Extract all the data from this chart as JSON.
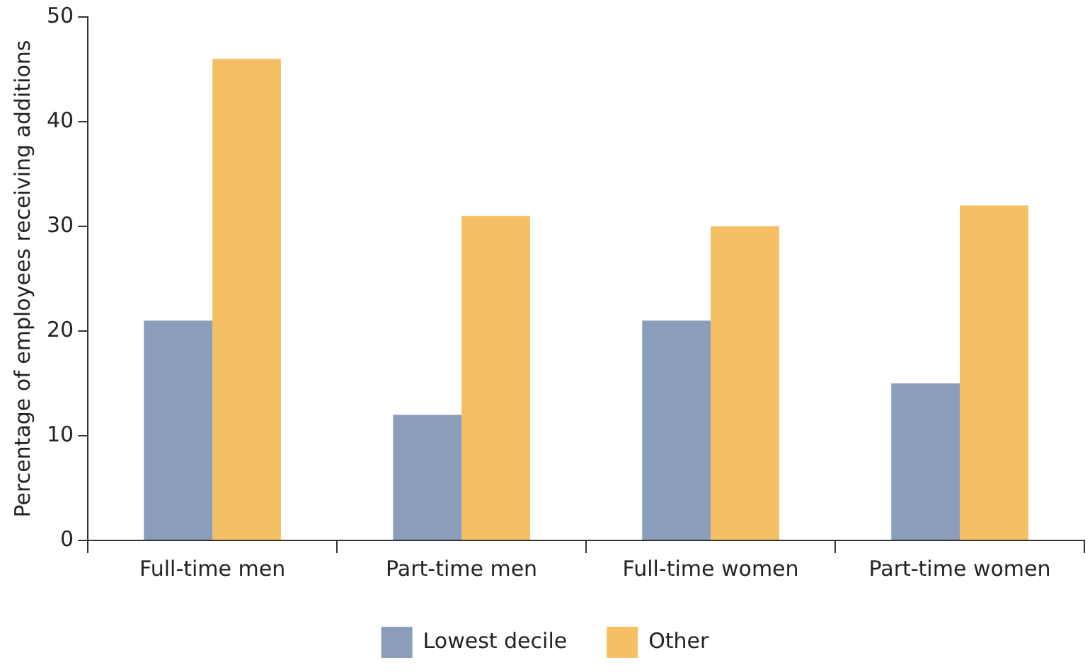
{
  "chart_data": {
    "type": "bar",
    "ylabel": "Percentage of employees receiving additions",
    "categories": [
      "Full-time men",
      "Part-time men",
      "Full-time women",
      "Part-time women"
    ],
    "series": [
      {
        "name": "Lowest decile",
        "color": "#8a9dbb",
        "values": [
          21,
          12,
          21,
          15
        ]
      },
      {
        "name": "Other",
        "color": "#f5bf63",
        "values": [
          46,
          31,
          30,
          32
        ]
      }
    ],
    "ylim": [
      0,
      50
    ],
    "yticks": [
      0,
      10,
      20,
      30,
      40,
      50
    ],
    "grid": false,
    "legend": "bottom"
  }
}
